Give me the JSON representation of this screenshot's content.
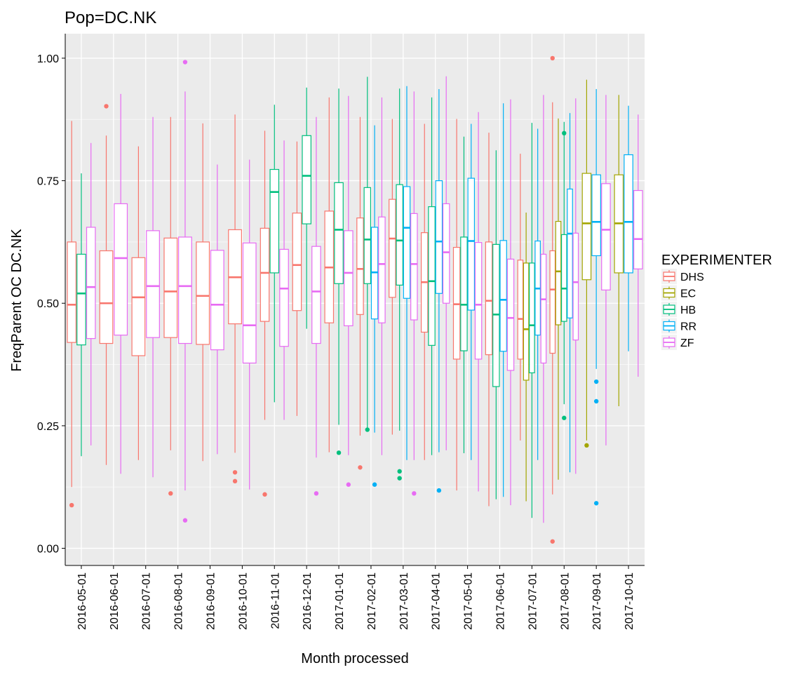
{
  "chart_data": {
    "type": "boxplot",
    "title": "Pop=DC.NK",
    "xlabel": "Month processed",
    "ylabel": "FreqParent OC DC.NK",
    "ylim": [
      -0.035,
      1.05
    ],
    "yticks": [
      "0.00",
      "0.25",
      "0.50",
      "0.75",
      "1.00"
    ],
    "ytick_values": [
      0,
      0.25,
      0.5,
      0.75,
      1.0
    ],
    "grid": true,
    "categories": [
      "2016-05-01",
      "2016-06-01",
      "2016-07-01",
      "2016-08-01",
      "2016-09-01",
      "2016-10-01",
      "2016-11-01",
      "2016-12-01",
      "2017-01-01",
      "2017-02-01",
      "2017-03-01",
      "2017-04-01",
      "2017-05-01",
      "2017-06-01",
      "2017-07-01",
      "2017-08-01",
      "2017-09-01",
      "2017-10-01"
    ],
    "legend": {
      "title": "EXPERIMENTER",
      "position": "right",
      "items": [
        {
          "name": "DHS",
          "color": "#F8766D"
        },
        {
          "name": "EC",
          "color": "#A3A500"
        },
        {
          "name": "HB",
          "color": "#00BF7D"
        },
        {
          "name": "RR",
          "color": "#00B0F6"
        },
        {
          "name": "ZF",
          "color": "#E76BF3"
        }
      ]
    },
    "boxes": [
      {
        "category": "2016-05-01",
        "groups": [
          {
            "series": "DHS",
            "whisker_low": 0.125,
            "q1": 0.42,
            "median": 0.497,
            "q3": 0.625,
            "whisker_high": 0.872,
            "outliers": [
              0.088
            ]
          },
          {
            "series": "HB",
            "whisker_low": 0.188,
            "q1": 0.415,
            "median": 0.52,
            "q3": 0.6,
            "whisker_high": 0.765,
            "outliers": []
          },
          {
            "series": "ZF",
            "whisker_low": 0.21,
            "q1": 0.428,
            "median": 0.533,
            "q3": 0.655,
            "whisker_high": 0.827,
            "outliers": []
          }
        ]
      },
      {
        "category": "2016-06-01",
        "groups": [
          {
            "series": "DHS",
            "whisker_low": 0.17,
            "q1": 0.418,
            "median": 0.5,
            "q3": 0.607,
            "whisker_high": 0.842,
            "outliers": [
              0.902
            ]
          },
          {
            "series": "ZF",
            "whisker_low": 0.152,
            "q1": 0.435,
            "median": 0.592,
            "q3": 0.703,
            "whisker_high": 0.927,
            "outliers": []
          }
        ]
      },
      {
        "category": "2016-07-01",
        "groups": [
          {
            "series": "DHS",
            "whisker_low": 0.18,
            "q1": 0.393,
            "median": 0.512,
            "q3": 0.593,
            "whisker_high": 0.82,
            "outliers": []
          },
          {
            "series": "ZF",
            "whisker_low": 0.145,
            "q1": 0.43,
            "median": 0.535,
            "q3": 0.648,
            "whisker_high": 0.88,
            "outliers": []
          }
        ]
      },
      {
        "category": "2016-08-01",
        "groups": [
          {
            "series": "DHS",
            "whisker_low": 0.2,
            "q1": 0.43,
            "median": 0.524,
            "q3": 0.633,
            "whisker_high": 0.88,
            "outliers": [
              0.112
            ]
          },
          {
            "series": "ZF",
            "whisker_low": 0.118,
            "q1": 0.418,
            "median": 0.535,
            "q3": 0.635,
            "whisker_high": 0.932,
            "outliers": [
              0.992,
              0.057
            ]
          }
        ]
      },
      {
        "category": "2016-09-01",
        "groups": [
          {
            "series": "DHS",
            "whisker_low": 0.178,
            "q1": 0.416,
            "median": 0.515,
            "q3": 0.625,
            "whisker_high": 0.867,
            "outliers": []
          },
          {
            "series": "ZF",
            "whisker_low": 0.192,
            "q1": 0.405,
            "median": 0.497,
            "q3": 0.608,
            "whisker_high": 0.783,
            "outliers": []
          }
        ]
      },
      {
        "category": "2016-10-01",
        "groups": [
          {
            "series": "DHS",
            "whisker_low": 0.195,
            "q1": 0.458,
            "median": 0.553,
            "q3": 0.65,
            "whisker_high": 0.885,
            "outliers": [
              0.155,
              0.137
            ]
          },
          {
            "series": "ZF",
            "whisker_low": 0.12,
            "q1": 0.378,
            "median": 0.455,
            "q3": 0.623,
            "whisker_high": 0.793,
            "outliers": []
          }
        ]
      },
      {
        "category": "2016-11-01",
        "groups": [
          {
            "series": "DHS",
            "whisker_low": 0.262,
            "q1": 0.463,
            "median": 0.562,
            "q3": 0.653,
            "whisker_high": 0.852,
            "outliers": [
              0.11
            ]
          },
          {
            "series": "HB",
            "whisker_low": 0.298,
            "q1": 0.562,
            "median": 0.727,
            "q3": 0.773,
            "whisker_high": 0.905,
            "outliers": []
          },
          {
            "series": "ZF",
            "whisker_low": 0.262,
            "q1": 0.412,
            "median": 0.53,
            "q3": 0.61,
            "whisker_high": 0.832,
            "outliers": []
          }
        ]
      },
      {
        "category": "2016-12-01",
        "groups": [
          {
            "series": "DHS",
            "whisker_low": 0.27,
            "q1": 0.485,
            "median": 0.578,
            "q3": 0.684,
            "whisker_high": 0.83,
            "outliers": []
          },
          {
            "series": "HB",
            "whisker_low": 0.448,
            "q1": 0.662,
            "median": 0.76,
            "q3": 0.842,
            "whisker_high": 0.94,
            "outliers": []
          },
          {
            "series": "ZF",
            "whisker_low": 0.185,
            "q1": 0.418,
            "median": 0.524,
            "q3": 0.616,
            "whisker_high": 0.88,
            "outliers": [
              0.112
            ]
          }
        ]
      },
      {
        "category": "2017-01-01",
        "groups": [
          {
            "series": "DHS",
            "whisker_low": 0.196,
            "q1": 0.46,
            "median": 0.573,
            "q3": 0.688,
            "whisker_high": 0.92,
            "outliers": []
          },
          {
            "series": "HB",
            "whisker_low": 0.252,
            "q1": 0.54,
            "median": 0.65,
            "q3": 0.746,
            "whisker_high": 0.938,
            "outliers": [
              0.195
            ]
          },
          {
            "series": "ZF",
            "whisker_low": 0.19,
            "q1": 0.454,
            "median": 0.562,
            "q3": 0.648,
            "whisker_high": 0.923,
            "outliers": [
              0.13
            ]
          }
        ]
      },
      {
        "category": "2017-02-01",
        "groups": [
          {
            "series": "DHS",
            "whisker_low": 0.23,
            "q1": 0.477,
            "median": 0.57,
            "q3": 0.674,
            "whisker_high": 0.88,
            "outliers": [
              0.165
            ]
          },
          {
            "series": "HB",
            "whisker_low": 0.244,
            "q1": 0.54,
            "median": 0.63,
            "q3": 0.736,
            "whisker_high": 0.962,
            "outliers": [
              0.242
            ]
          },
          {
            "series": "RR",
            "whisker_low": 0.236,
            "q1": 0.468,
            "median": 0.563,
            "q3": 0.655,
            "whisker_high": 0.863,
            "outliers": [
              0.13
            ]
          },
          {
            "series": "ZF",
            "whisker_low": 0.19,
            "q1": 0.46,
            "median": 0.58,
            "q3": 0.676,
            "whisker_high": 0.92,
            "outliers": []
          }
        ]
      },
      {
        "category": "2017-03-01",
        "groups": [
          {
            "series": "DHS",
            "whisker_low": 0.232,
            "q1": 0.512,
            "median": 0.632,
            "q3": 0.712,
            "whisker_high": 0.876,
            "outliers": []
          },
          {
            "series": "HB",
            "whisker_low": 0.24,
            "q1": 0.537,
            "median": 0.628,
            "q3": 0.742,
            "whisker_high": 0.938,
            "outliers": [
              0.157,
              0.143
            ]
          },
          {
            "series": "RR",
            "whisker_low": 0.18,
            "q1": 0.51,
            "median": 0.654,
            "q3": 0.738,
            "whisker_high": 0.943,
            "outliers": []
          },
          {
            "series": "ZF",
            "whisker_low": 0.18,
            "q1": 0.466,
            "median": 0.58,
            "q3": 0.683,
            "whisker_high": 0.932,
            "outliers": [
              0.112
            ]
          }
        ]
      },
      {
        "category": "2017-04-01",
        "groups": [
          {
            "series": "DHS",
            "whisker_low": 0.18,
            "q1": 0.441,
            "median": 0.543,
            "q3": 0.644,
            "whisker_high": 0.866,
            "outliers": []
          },
          {
            "series": "HB",
            "whisker_low": 0.19,
            "q1": 0.414,
            "median": 0.545,
            "q3": 0.697,
            "whisker_high": 0.92,
            "outliers": []
          },
          {
            "series": "RR",
            "whisker_low": 0.196,
            "q1": 0.52,
            "median": 0.626,
            "q3": 0.75,
            "whisker_high": 0.937,
            "outliers": [
              0.118
            ]
          },
          {
            "series": "ZF",
            "whisker_low": 0.2,
            "q1": 0.5,
            "median": 0.604,
            "q3": 0.703,
            "whisker_high": 0.963,
            "outliers": []
          }
        ]
      },
      {
        "category": "2017-05-01",
        "groups": [
          {
            "series": "DHS",
            "whisker_low": 0.118,
            "q1": 0.386,
            "median": 0.498,
            "q3": 0.614,
            "whisker_high": 0.876,
            "outliers": []
          },
          {
            "series": "HB",
            "whisker_low": 0.194,
            "q1": 0.403,
            "median": 0.497,
            "q3": 0.635,
            "whisker_high": 0.84,
            "outliers": []
          },
          {
            "series": "RR",
            "whisker_low": 0.18,
            "q1": 0.486,
            "median": 0.627,
            "q3": 0.755,
            "whisker_high": 0.866,
            "outliers": []
          },
          {
            "series": "ZF",
            "whisker_low": 0.116,
            "q1": 0.386,
            "median": 0.497,
            "q3": 0.624,
            "whisker_high": 0.89,
            "outliers": []
          }
        ]
      },
      {
        "category": "2017-06-01",
        "groups": [
          {
            "series": "DHS",
            "whisker_low": 0.086,
            "q1": 0.395,
            "median": 0.505,
            "q3": 0.625,
            "whisker_high": 0.848,
            "outliers": []
          },
          {
            "series": "HB",
            "whisker_low": 0.1,
            "q1": 0.33,
            "median": 0.477,
            "q3": 0.62,
            "whisker_high": 0.812,
            "outliers": []
          },
          {
            "series": "RR",
            "whisker_low": 0.105,
            "q1": 0.402,
            "median": 0.507,
            "q3": 0.628,
            "whisker_high": 0.908,
            "outliers": []
          },
          {
            "series": "ZF",
            "whisker_low": 0.088,
            "q1": 0.363,
            "median": 0.47,
            "q3": 0.59,
            "whisker_high": 0.916,
            "outliers": []
          }
        ]
      },
      {
        "category": "2017-07-01",
        "groups": [
          {
            "series": "DHS",
            "whisker_low": 0.22,
            "q1": 0.386,
            "median": 0.468,
            "q3": 0.588,
            "whisker_high": 0.805,
            "outliers": []
          },
          {
            "series": "EC",
            "whisker_low": 0.096,
            "q1": 0.343,
            "median": 0.447,
            "q3": 0.582,
            "whisker_high": 0.685,
            "outliers": []
          },
          {
            "series": "HB",
            "whisker_low": 0.062,
            "q1": 0.358,
            "median": 0.455,
            "q3": 0.582,
            "whisker_high": 0.868,
            "outliers": []
          },
          {
            "series": "RR",
            "whisker_low": 0.18,
            "q1": 0.435,
            "median": 0.53,
            "q3": 0.627,
            "whisker_high": 0.856,
            "outliers": []
          },
          {
            "series": "ZF",
            "whisker_low": 0.052,
            "q1": 0.378,
            "median": 0.508,
            "q3": 0.6,
            "whisker_high": 0.925,
            "outliers": []
          }
        ]
      },
      {
        "category": "2017-08-01",
        "groups": [
          {
            "series": "DHS",
            "whisker_low": 0.11,
            "q1": 0.398,
            "median": 0.528,
            "q3": 0.607,
            "whisker_high": 0.91,
            "outliers": [
              1.0,
              0.014
            ]
          },
          {
            "series": "EC",
            "whisker_low": 0.14,
            "q1": 0.456,
            "median": 0.565,
            "q3": 0.667,
            "whisker_high": 0.877,
            "outliers": []
          },
          {
            "series": "HB",
            "whisker_low": 0.294,
            "q1": 0.463,
            "median": 0.53,
            "q3": 0.64,
            "whisker_high": 0.87,
            "outliers": [
              0.847,
              0.266
            ]
          },
          {
            "series": "RR",
            "whisker_low": 0.155,
            "q1": 0.47,
            "median": 0.642,
            "q3": 0.733,
            "whisker_high": 0.888,
            "outliers": []
          },
          {
            "series": "ZF",
            "whisker_low": 0.152,
            "q1": 0.425,
            "median": 0.543,
            "q3": 0.643,
            "whisker_high": 0.918,
            "outliers": []
          }
        ]
      },
      {
        "category": "2017-09-01",
        "groups": [
          {
            "series": "EC",
            "whisker_low": 0.22,
            "q1": 0.548,
            "median": 0.663,
            "q3": 0.765,
            "whisker_high": 0.956,
            "outliers": [
              0.21
            ]
          },
          {
            "series": "RR",
            "whisker_low": 0.366,
            "q1": 0.597,
            "median": 0.666,
            "q3": 0.762,
            "whisker_high": 0.937,
            "outliers": [
              0.34,
              0.3,
              0.092
            ]
          },
          {
            "series": "ZF",
            "whisker_low": 0.21,
            "q1": 0.527,
            "median": 0.65,
            "q3": 0.744,
            "whisker_high": 0.925,
            "outliers": []
          }
        ]
      },
      {
        "category": "2017-10-01",
        "groups": [
          {
            "series": "EC",
            "whisker_low": 0.29,
            "q1": 0.562,
            "median": 0.663,
            "q3": 0.762,
            "whisker_high": 0.925,
            "outliers": []
          },
          {
            "series": "RR",
            "whisker_low": 0.402,
            "q1": 0.562,
            "median": 0.666,
            "q3": 0.803,
            "whisker_high": 0.903,
            "outliers": []
          },
          {
            "series": "ZF",
            "whisker_low": 0.35,
            "q1": 0.57,
            "median": 0.631,
            "q3": 0.73,
            "whisker_high": 0.885,
            "outliers": []
          }
        ]
      }
    ]
  }
}
